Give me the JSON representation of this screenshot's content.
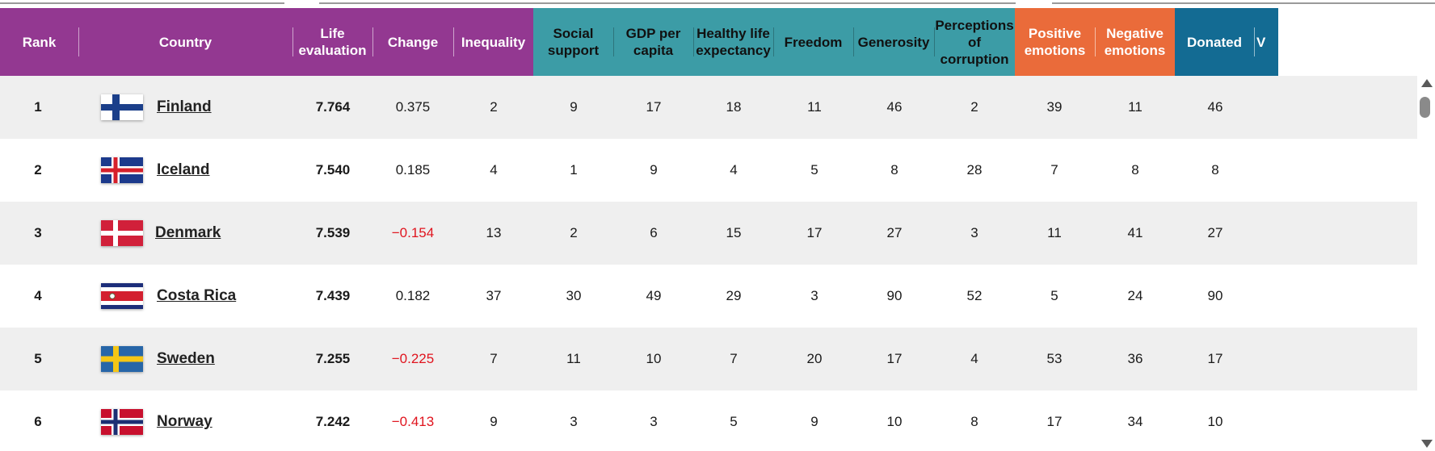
{
  "colors": {
    "purple": "#933891",
    "teal": "#3c9ca6",
    "orange": "#ea6b3a",
    "blue": "#136b93",
    "negative": "#e0141e",
    "row_alt": "#efefef"
  },
  "columns": [
    {
      "key": "rank",
      "label": "Rank",
      "group": "purple"
    },
    {
      "key": "country",
      "label": "Country",
      "group": "purple"
    },
    {
      "key": "life",
      "label": "Life evaluation",
      "group": "purple"
    },
    {
      "key": "change",
      "label": "Change",
      "group": "purple"
    },
    {
      "key": "inequality",
      "label": "Inequality",
      "group": "purple"
    },
    {
      "key": "social",
      "label": "Social support",
      "group": "teal"
    },
    {
      "key": "gdp",
      "label": "GDP per capita",
      "group": "teal"
    },
    {
      "key": "healthy",
      "label": "Healthy life expectancy",
      "group": "teal"
    },
    {
      "key": "freedom",
      "label": "Freedom",
      "group": "teal"
    },
    {
      "key": "generosity",
      "label": "Generosity",
      "group": "teal"
    },
    {
      "key": "corruption",
      "label": "Perceptions of corruption",
      "group": "teal"
    },
    {
      "key": "positive",
      "label": "Positive emotions",
      "group": "orange"
    },
    {
      "key": "negative",
      "label": "Negative emotions",
      "group": "orange"
    },
    {
      "key": "donated",
      "label": "Donated",
      "group": "blue"
    },
    {
      "key": "volunteered",
      "label": "V",
      "group": "blue"
    }
  ],
  "rows": [
    {
      "rank": "1",
      "country": "Finland",
      "flag": "finland-flag-icon",
      "life": "7.764",
      "change": "0.375",
      "change_negative": false,
      "inequality": "2",
      "social": "9",
      "gdp": "17",
      "healthy": "18",
      "freedom": "11",
      "generosity": "46",
      "corruption": "2",
      "positive": "39",
      "negative": "11",
      "donated": "46"
    },
    {
      "rank": "2",
      "country": "Iceland",
      "flag": "iceland-flag-icon",
      "life": "7.540",
      "change": "0.185",
      "change_negative": false,
      "inequality": "4",
      "social": "1",
      "gdp": "9",
      "healthy": "4",
      "freedom": "5",
      "generosity": "8",
      "corruption": "28",
      "positive": "7",
      "negative": "8",
      "donated": "8"
    },
    {
      "rank": "3",
      "country": "Denmark",
      "flag": "denmark-flag-icon",
      "life": "7.539",
      "change": "−0.154",
      "change_negative": true,
      "inequality": "13",
      "social": "2",
      "gdp": "6",
      "healthy": "15",
      "freedom": "17",
      "generosity": "27",
      "corruption": "3",
      "positive": "11",
      "negative": "41",
      "donated": "27"
    },
    {
      "rank": "4",
      "country": "Costa Rica",
      "flag": "costa-rica-flag-icon",
      "life": "7.439",
      "change": "0.182",
      "change_negative": false,
      "inequality": "37",
      "social": "30",
      "gdp": "49",
      "healthy": "29",
      "freedom": "3",
      "generosity": "90",
      "corruption": "52",
      "positive": "5",
      "negative": "24",
      "donated": "90"
    },
    {
      "rank": "5",
      "country": "Sweden",
      "flag": "sweden-flag-icon",
      "life": "7.255",
      "change": "−0.225",
      "change_negative": true,
      "inequality": "7",
      "social": "11",
      "gdp": "10",
      "healthy": "7",
      "freedom": "20",
      "generosity": "17",
      "corruption": "4",
      "positive": "53",
      "negative": "36",
      "donated": "17"
    },
    {
      "rank": "6",
      "country": "Norway",
      "flag": "norway-flag-icon",
      "life": "7.242",
      "change": "−0.413",
      "change_negative": true,
      "inequality": "9",
      "social": "3",
      "gdp": "3",
      "healthy": "5",
      "freedom": "9",
      "generosity": "10",
      "corruption": "8",
      "positive": "17",
      "negative": "34",
      "donated": "10"
    }
  ]
}
